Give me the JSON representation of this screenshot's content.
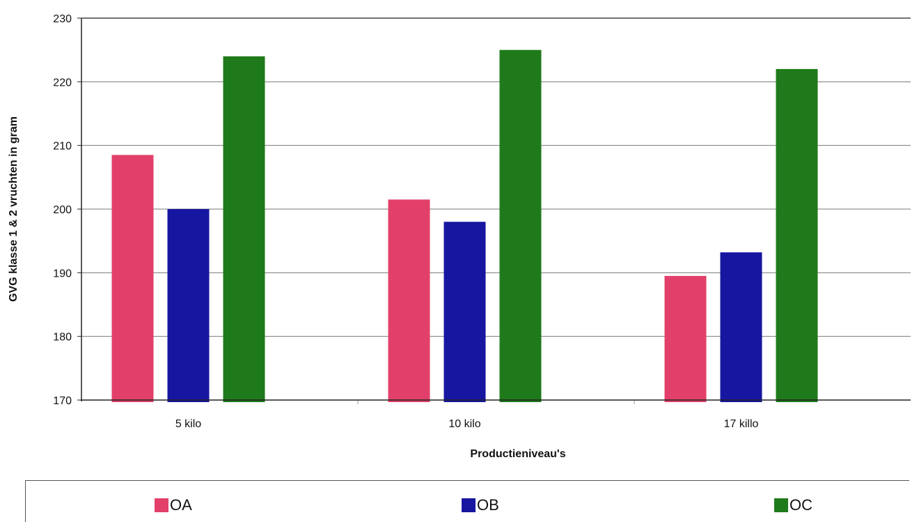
{
  "chart_data": {
    "type": "bar",
    "categories": [
      "5 kilo",
      "10 kilo",
      "17 killo"
    ],
    "series": [
      {
        "name": "OA",
        "color": "#e2406a",
        "values": [
          208.5,
          201.5,
          189.5
        ]
      },
      {
        "name": "OB",
        "color": "#1616a0",
        "values": [
          200,
          198,
          193.2
        ]
      },
      {
        "name": "OC",
        "color": "#1e7a1a",
        "values": [
          224,
          225,
          222
        ]
      }
    ],
    "xlabel": "Productieniveau's",
    "ylabel": "GVG klasse 1 & 2 vruchten in gram",
    "ylim": [
      170,
      230
    ],
    "yticks": [
      230,
      220,
      210,
      200,
      190,
      180,
      170
    ],
    "grid": true,
    "legend_position": "bottom"
  }
}
